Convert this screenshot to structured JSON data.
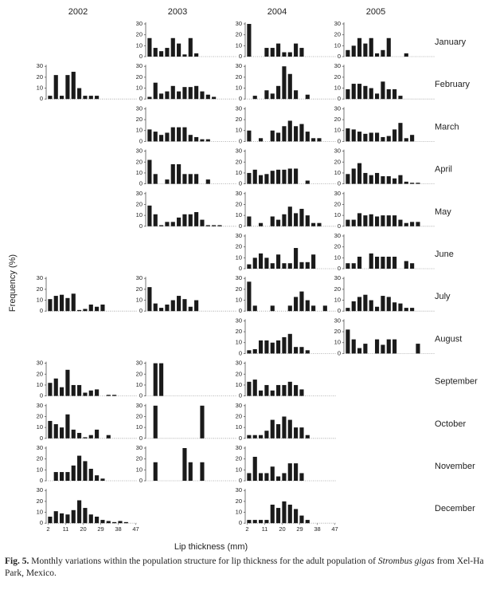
{
  "chart_data": {
    "type": "bar",
    "years": [
      "2002",
      "2003",
      "2004",
      "2005"
    ],
    "months": [
      "January",
      "February",
      "March",
      "April",
      "May",
      "June",
      "July",
      "August",
      "September",
      "October",
      "November",
      "December"
    ],
    "xlabel": "Lip thickness (mm)",
    "ylabel": "Frequency (%)",
    "x": [
      3,
      6,
      9,
      12,
      15,
      18,
      21,
      24,
      27,
      30,
      33,
      36,
      39,
      42,
      45
    ],
    "xlim": [
      1,
      48
    ],
    "xticks": [
      2,
      11,
      20,
      29,
      38,
      47
    ],
    "ylim": [
      0,
      30
    ],
    "yticks": [
      0,
      10,
      20,
      30
    ],
    "color": "#1a1a1a",
    "panels": [
      [
        null,
        [
          17,
          8,
          5,
          8,
          17,
          12,
          2,
          17,
          3,
          0,
          0,
          0,
          0,
          0,
          0
        ],
        [
          30,
          0,
          0,
          8,
          8,
          12,
          4,
          4,
          12,
          8,
          0,
          0,
          0,
          0,
          0
        ],
        [
          6,
          10,
          17,
          12,
          17,
          3,
          6,
          17,
          0,
          0,
          3,
          0,
          0,
          0,
          0
        ]
      ],
      [
        [
          3,
          22,
          3,
          22,
          25,
          10,
          3,
          3,
          3,
          0,
          0,
          0,
          0,
          0,
          0
        ],
        [
          2,
          15,
          5,
          7,
          12,
          7,
          11,
          11,
          12,
          7,
          4,
          2,
          0,
          0,
          0
        ],
        [
          0,
          3,
          0,
          8,
          5,
          12,
          30,
          23,
          8,
          0,
          4,
          0,
          0,
          0,
          0
        ],
        [
          9,
          14,
          14,
          12,
          10,
          5,
          16,
          9,
          9,
          3,
          0,
          0,
          0,
          0,
          0
        ]
      ],
      [
        null,
        [
          11,
          9,
          6,
          8,
          13,
          13,
          13,
          6,
          4,
          2,
          2,
          0,
          0,
          0,
          0
        ],
        [
          10,
          0,
          3,
          0,
          10,
          8,
          14,
          19,
          14,
          16,
          9,
          3,
          3,
          0,
          0
        ],
        [
          12,
          11,
          9,
          7,
          8,
          8,
          4,
          5,
          11,
          17,
          3,
          6,
          0,
          0,
          0
        ]
      ],
      [
        null,
        [
          22,
          9,
          0,
          4,
          18,
          18,
          9,
          9,
          9,
          0,
          4,
          0,
          0,
          0,
          0
        ],
        [
          10,
          13,
          8,
          9,
          12,
          13,
          13,
          14,
          14,
          0,
          3,
          0,
          0,
          0,
          0
        ],
        [
          9,
          14,
          19,
          10,
          8,
          10,
          7,
          7,
          5,
          8,
          2,
          1,
          1,
          0,
          0
        ]
      ],
      [
        null,
        [
          19,
          11,
          1,
          4,
          4,
          8,
          11,
          11,
          13,
          6,
          1,
          1,
          1,
          0,
          0
        ],
        [
          9,
          0,
          3,
          0,
          9,
          6,
          11,
          18,
          12,
          16,
          10,
          3,
          3,
          0,
          0
        ],
        [
          6,
          6,
          12,
          10,
          11,
          9,
          10,
          10,
          10,
          6,
          3,
          4,
          4,
          0,
          0
        ]
      ],
      [
        null,
        null,
        [
          4,
          10,
          14,
          10,
          5,
          13,
          5,
          5,
          19,
          6,
          6,
          13,
          0,
          0,
          0
        ],
        [
          5,
          5,
          11,
          0,
          14,
          11,
          11,
          11,
          11,
          0,
          7,
          5,
          0,
          0,
          0
        ]
      ],
      [
        [
          11,
          14,
          15,
          12,
          16,
          1,
          2,
          6,
          4,
          6,
          0,
          0,
          0,
          0,
          0
        ],
        [
          22,
          7,
          3,
          6,
          10,
          14,
          11,
          4,
          10,
          0,
          0,
          0,
          0,
          0,
          0
        ],
        [
          27,
          5,
          0,
          0,
          5,
          0,
          0,
          5,
          13,
          18,
          10,
          5,
          0,
          5,
          0
        ],
        [
          3,
          9,
          13,
          15,
          10,
          4,
          14,
          13,
          8,
          7,
          3,
          3,
          0,
          0,
          0
        ]
      ],
      [
        null,
        null,
        [
          3,
          4,
          12,
          12,
          10,
          12,
          15,
          18,
          6,
          6,
          3,
          0,
          0,
          0,
          0
        ],
        [
          22,
          13,
          5,
          9,
          0,
          13,
          8,
          13,
          13,
          0,
          0,
          0,
          9,
          0,
          0
        ]
      ],
      [
        [
          12,
          16,
          8,
          24,
          10,
          10,
          3,
          5,
          6,
          0,
          1,
          1,
          0,
          0,
          0
        ],
        [
          0,
          30,
          30,
          0,
          0,
          0,
          0,
          0,
          0,
          0,
          0,
          0,
          0,
          0,
          0
        ],
        [
          13,
          15,
          5,
          10,
          5,
          10,
          10,
          13,
          10,
          6,
          0,
          0,
          0,
          0,
          0
        ],
        null
      ],
      [
        [
          16,
          13,
          10,
          22,
          8,
          5,
          1,
          3,
          8,
          0,
          3,
          0,
          0,
          0,
          0
        ],
        [
          0,
          30,
          0,
          0,
          0,
          0,
          0,
          0,
          0,
          30,
          0,
          0,
          0,
          0,
          0
        ],
        [
          3,
          3,
          3,
          7,
          17,
          13,
          20,
          17,
          10,
          10,
          3,
          0,
          0,
          0,
          0
        ],
        null
      ],
      [
        [
          0,
          8,
          8,
          8,
          14,
          23,
          18,
          11,
          5,
          2,
          0,
          0,
          0,
          0,
          0
        ],
        [
          0,
          17,
          0,
          0,
          0,
          0,
          30,
          17,
          0,
          17,
          0,
          0,
          0,
          0,
          0
        ],
        [
          7,
          22,
          7,
          7,
          13,
          4,
          7,
          16,
          16,
          7,
          0,
          0,
          0,
          0,
          0
        ],
        null
      ],
      [
        [
          6,
          11,
          9,
          8,
          12,
          21,
          14,
          8,
          6,
          3,
          2,
          1,
          2,
          1,
          0
        ],
        null,
        [
          3,
          3,
          3,
          3,
          17,
          14,
          20,
          17,
          13,
          7,
          3,
          0,
          0,
          0,
          0
        ],
        null
      ]
    ],
    "caption": [
      "Fig. 5.",
      " Monthly variations within the population structure for lip thickness for the adult population of ",
      "Strombus gigas",
      " from Xel-Ha Park, Mexico."
    ]
  }
}
